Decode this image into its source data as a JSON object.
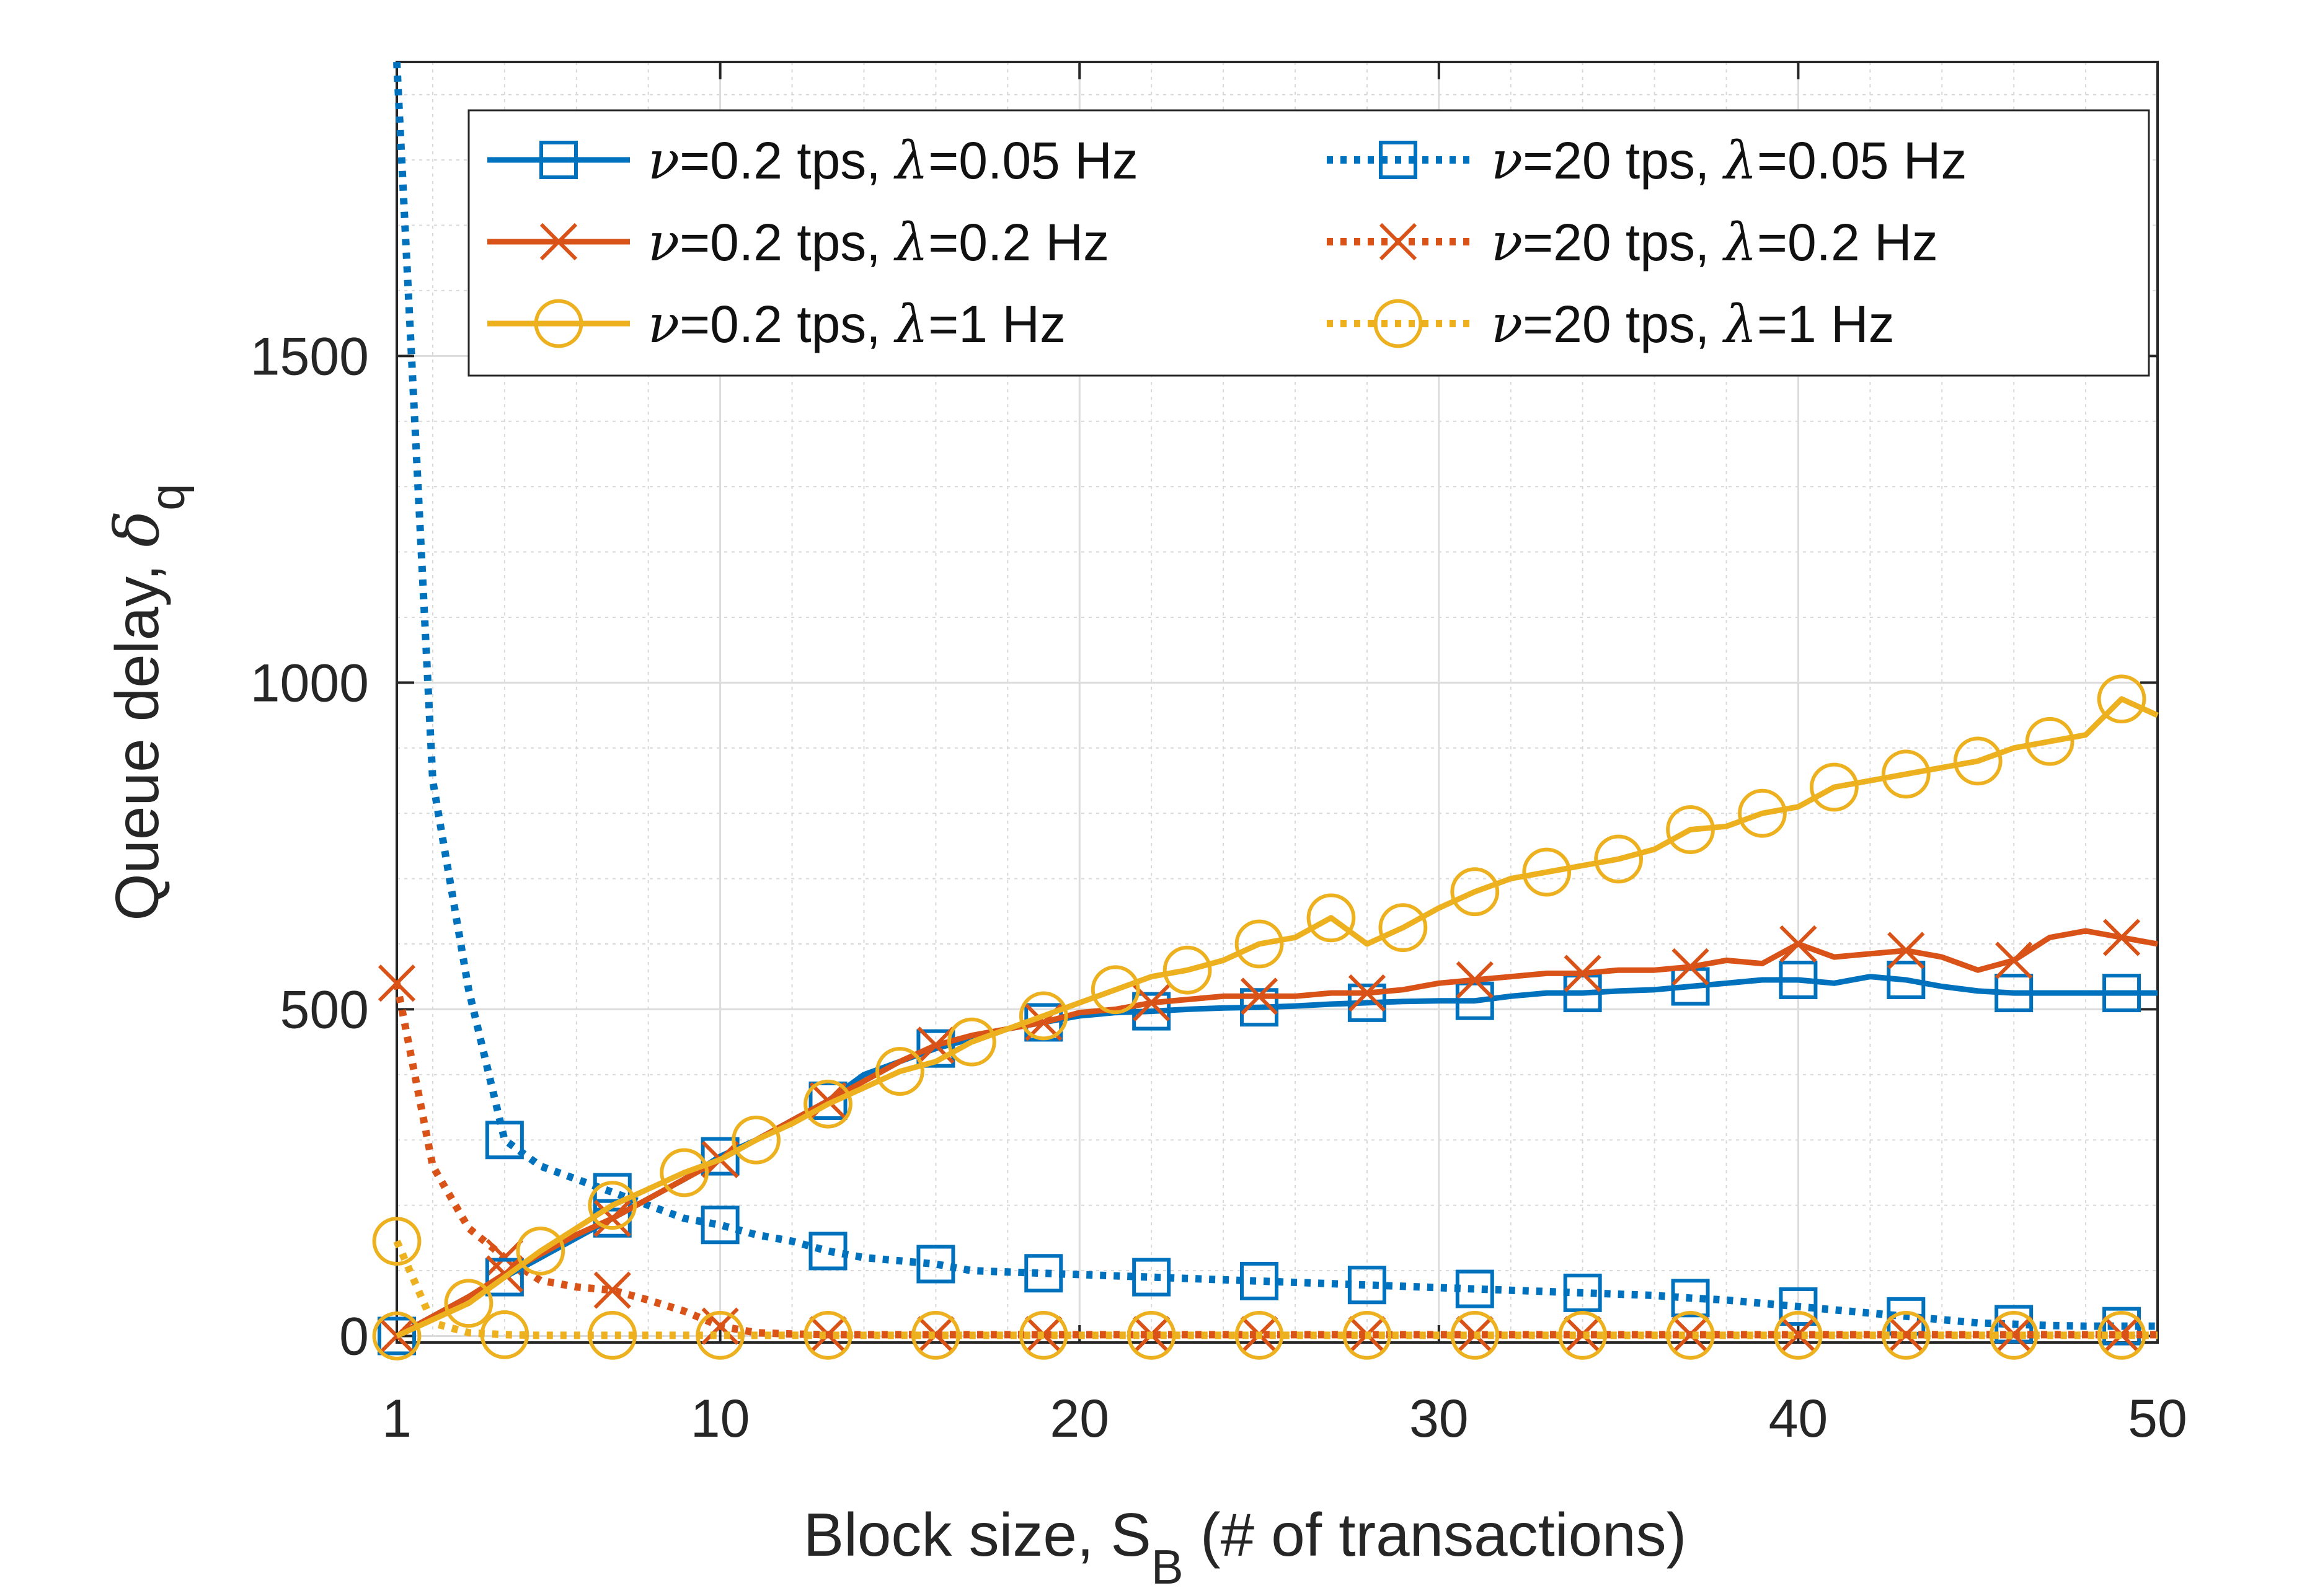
{
  "chart_data": {
    "type": "line",
    "title": "",
    "xlabel_text": "Block size, S",
    "xlabel_sub": "B",
    "xlabel_suffix": " (# of transactions)",
    "ylabel_text": "Queue delay,",
    "ylabel_symbol": "δ",
    "ylabel_sub": "q",
    "xlim": [
      1,
      50
    ],
    "ylim": [
      -10,
      1950
    ],
    "xticks": [
      1,
      10,
      20,
      30,
      40,
      50
    ],
    "xtick_labels": [
      "1",
      "10",
      "20",
      "30",
      "40",
      "50"
    ],
    "yticks": [
      0,
      500,
      1000,
      1500
    ],
    "ytick_labels": [
      "0",
      "500",
      "1000",
      "1500"
    ],
    "grid": true,
    "minor_grid": true,
    "legend_position": "top-right, two columns",
    "x": [
      1,
      2,
      3,
      4,
      5,
      6,
      7,
      8,
      9,
      10,
      11,
      12,
      13,
      14,
      15,
      16,
      17,
      18,
      19,
      20,
      21,
      22,
      23,
      24,
      25,
      26,
      27,
      28,
      29,
      30,
      31,
      32,
      33,
      34,
      35,
      36,
      37,
      38,
      39,
      40,
      41,
      42,
      43,
      44,
      45,
      46,
      47,
      48,
      49,
      50
    ],
    "series": [
      {
        "name": "ν=0.2 tps, λ=0.05 Hz",
        "legend_param1": "=0.2 tps, ",
        "legend_param2": "=0.05 Hz",
        "color": "#0072BD",
        "style": "solid",
        "marker": "square",
        "marker_x": [
          1,
          4,
          7,
          10,
          13,
          16,
          19,
          22,
          25,
          28,
          31,
          34,
          37,
          40,
          43,
          46,
          49
        ],
        "values": [
          0,
          30,
          60,
          90,
          120,
          150,
          180,
          210,
          240,
          275,
          300,
          330,
          360,
          400,
          420,
          440,
          455,
          470,
          480,
          490,
          495,
          497,
          500,
          502,
          503,
          505,
          508,
          510,
          512,
          513,
          513,
          520,
          525,
          525,
          528,
          530,
          535,
          540,
          545,
          545,
          540,
          550,
          545,
          535,
          528,
          525,
          525,
          525,
          525,
          525
        ]
      },
      {
        "name": "ν=0.2 tps, λ=0.2 Hz",
        "legend_param1": "=0.2 tps, ",
        "legend_param2": "=0.2 Hz",
        "color": "#D95319",
        "style": "solid",
        "marker": "x",
        "marker_x": [
          1,
          4,
          7,
          10,
          13,
          16,
          19,
          22,
          25,
          28,
          31,
          34,
          37,
          40,
          43,
          46,
          49
        ],
        "values": [
          0,
          30,
          60,
          95,
          125,
          155,
          180,
          210,
          240,
          270,
          300,
          330,
          360,
          390,
          420,
          445,
          460,
          470,
          480,
          495,
          500,
          510,
          515,
          520,
          520,
          520,
          525,
          525,
          530,
          540,
          545,
          550,
          555,
          555,
          560,
          560,
          565,
          575,
          570,
          600,
          580,
          585,
          590,
          580,
          560,
          575,
          610,
          620,
          610,
          600
        ]
      },
      {
        "name": "ν=0.2 tps, λ=1 Hz",
        "legend_param1": "=0.2 tps, ",
        "legend_param2": "=1 Hz",
        "color": "#EDB120",
        "style": "solid",
        "marker": "circle",
        "marker_x": [
          1,
          3,
          5,
          7,
          9,
          11,
          13,
          15,
          17,
          19,
          21,
          23,
          25,
          27,
          29,
          31,
          33,
          35,
          37,
          39,
          41,
          43,
          45,
          47,
          49
        ],
        "values": [
          0,
          25,
          50,
          90,
          130,
          165,
          200,
          225,
          250,
          270,
          300,
          325,
          355,
          380,
          405,
          420,
          450,
          470,
          490,
          510,
          530,
          550,
          560,
          575,
          600,
          610,
          640,
          600,
          625,
          655,
          680,
          700,
          710,
          720,
          730,
          745,
          775,
          780,
          800,
          810,
          840,
          850,
          860,
          870,
          880,
          900,
          910,
          920,
          975,
          950
        ]
      },
      {
        "name": "ν=20 tps, λ=0.05 Hz",
        "legend_param1": "=20 tps, ",
        "legend_param2": "=0.05 Hz",
        "color": "#0072BD",
        "style": "dotted",
        "marker": "square",
        "marker_x": [
          4,
          7,
          10,
          13,
          16,
          19,
          22,
          25,
          28,
          31,
          34,
          37,
          40,
          43,
          46,
          49
        ],
        "values": [
          1950,
          850,
          530,
          300,
          260,
          240,
          220,
          200,
          180,
          170,
          155,
          145,
          130,
          120,
          115,
          110,
          100,
          98,
          96,
          94,
          92,
          90,
          88,
          86,
          84,
          82,
          80,
          78,
          76,
          74,
          72,
          70,
          68,
          66,
          64,
          62,
          58,
          55,
          50,
          45,
          40,
          35,
          30,
          25,
          20,
          18,
          16,
          15,
          15,
          15
        ]
      },
      {
        "name": "ν=20 tps, λ=0.2 Hz",
        "legend_param1": "=20 tps, ",
        "legend_param2": "=0.2 Hz",
        "color": "#D95319",
        "style": "dotted",
        "marker": "x",
        "marker_x": [
          1,
          4,
          7,
          10,
          13,
          16,
          19,
          22,
          25,
          28,
          31,
          34,
          37,
          40,
          43,
          46,
          49
        ],
        "values": [
          540,
          260,
          165,
          120,
          85,
          75,
          70,
          55,
          38,
          15,
          5,
          3,
          2,
          2,
          2,
          2,
          2,
          2,
          2,
          2,
          2,
          2,
          2,
          2,
          2,
          2,
          2,
          2,
          2,
          2,
          2,
          2,
          2,
          2,
          2,
          2,
          2,
          2,
          2,
          2,
          2,
          2,
          2,
          2,
          2,
          2,
          2,
          2,
          2,
          2
        ]
      },
      {
        "name": "ν=20 tps, λ=1 Hz",
        "legend_param1": "=20 tps, ",
        "legend_param2": "=1 Hz",
        "color": "#EDB120",
        "style": "dotted",
        "marker": "circle",
        "marker_x": [
          1,
          4,
          7,
          10,
          13,
          16,
          19,
          22,
          25,
          28,
          31,
          34,
          37,
          40,
          43,
          46,
          49
        ],
        "values": [
          145,
          20,
          5,
          2,
          1,
          1,
          1,
          1,
          1,
          1,
          1,
          1,
          1,
          1,
          1,
          1,
          1,
          1,
          1,
          1,
          1,
          1,
          1,
          1,
          1,
          1,
          1,
          1,
          1,
          1,
          1,
          1,
          1,
          1,
          1,
          1,
          1,
          1,
          1,
          1,
          1,
          1,
          1,
          1,
          1,
          1,
          1,
          1,
          1,
          1
        ]
      }
    ]
  }
}
